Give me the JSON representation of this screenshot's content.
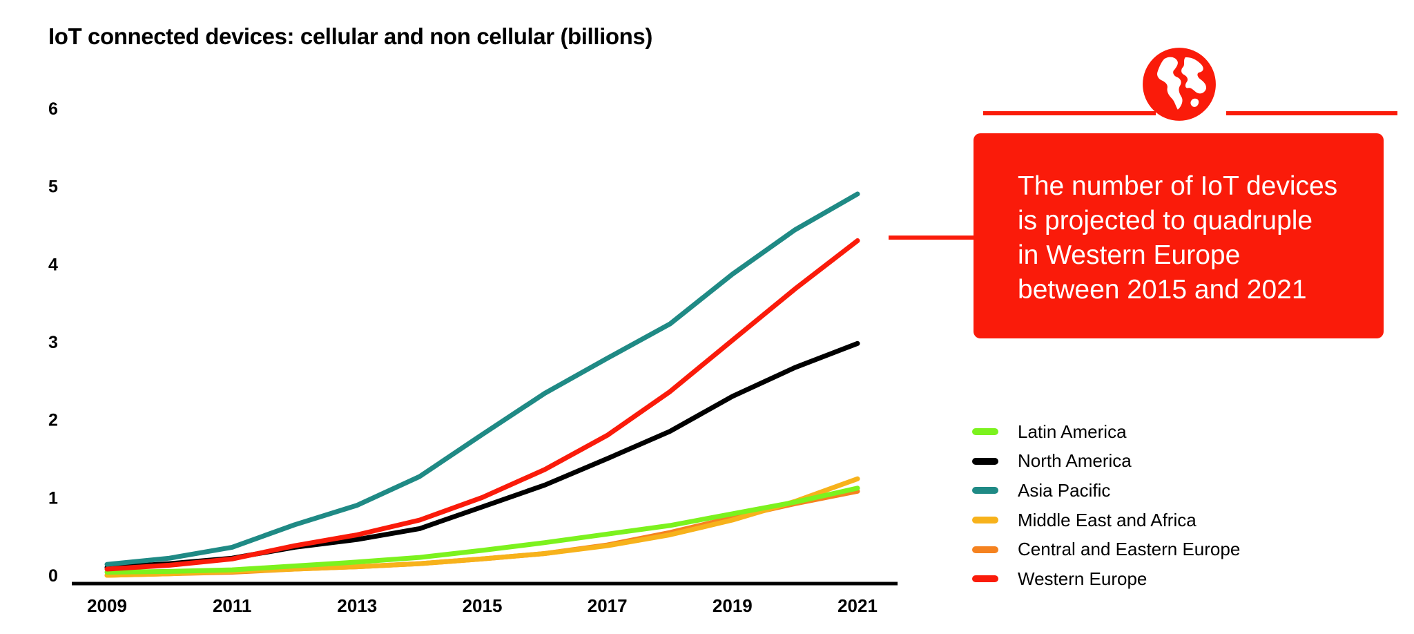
{
  "chart_data": {
    "type": "line",
    "title": "IoT connected devices: cellular and non cellular (billions)",
    "xlabel": "",
    "ylabel": "",
    "x": [
      2009,
      2010,
      2011,
      2012,
      2013,
      2014,
      2015,
      2016,
      2017,
      2018,
      2019,
      2020,
      2021
    ],
    "xticks": [
      2009,
      2011,
      2013,
      2015,
      2017,
      2019,
      2021
    ],
    "yticks": [
      0,
      1,
      2,
      3,
      4,
      5,
      6
    ],
    "ylim": [
      0,
      6
    ],
    "grid": false,
    "legend_position": "right",
    "series": [
      {
        "name": "Latin America",
        "color": "#7cf21e",
        "values": [
          0.04,
          0.05,
          0.07,
          0.12,
          0.17,
          0.23,
          0.32,
          0.42,
          0.53,
          0.64,
          0.79,
          0.94,
          1.12
        ]
      },
      {
        "name": "North America",
        "color": "#000000",
        "values": [
          0.1,
          0.15,
          0.22,
          0.36,
          0.46,
          0.6,
          0.88,
          1.16,
          1.5,
          1.85,
          2.3,
          2.67,
          2.98
        ]
      },
      {
        "name": "Asia Pacific",
        "color": "#1f8a85",
        "values": [
          0.14,
          0.22,
          0.36,
          0.65,
          0.9,
          1.27,
          1.81,
          2.34,
          2.79,
          3.23,
          3.87,
          4.44,
          4.9
        ]
      },
      {
        "name": "Middle East and Africa",
        "color": "#f7b21b",
        "values": [
          0.0,
          0.02,
          0.05,
          0.08,
          0.11,
          0.15,
          0.21,
          0.28,
          0.38,
          0.52,
          0.71,
          0.95,
          1.24
        ]
      },
      {
        "name": "Central and Eastern Europe",
        "color": "#f5821f",
        "values": [
          0.0,
          0.02,
          0.04,
          0.08,
          0.11,
          0.15,
          0.21,
          0.28,
          0.39,
          0.55,
          0.74,
          0.92,
          1.08
        ]
      },
      {
        "name": "Western Europe",
        "color": "#fa1b0a",
        "values": [
          0.08,
          0.13,
          0.21,
          0.38,
          0.52,
          0.71,
          1.0,
          1.36,
          1.8,
          2.36,
          3.02,
          3.68,
          4.3
        ]
      }
    ],
    "annotation": "The number of IoT devices is projected to quadruple in Western Europe between 2015 and 2021"
  },
  "callout": {
    "lines": [
      "The number of IoT devices",
      "is projected to quadruple",
      "in Western Europe",
      "between 2015 and 2021"
    ]
  },
  "icons": {
    "globe": "globe-icon"
  },
  "colors": {
    "accent": "#fa1b0a",
    "axis": "#000000"
  }
}
